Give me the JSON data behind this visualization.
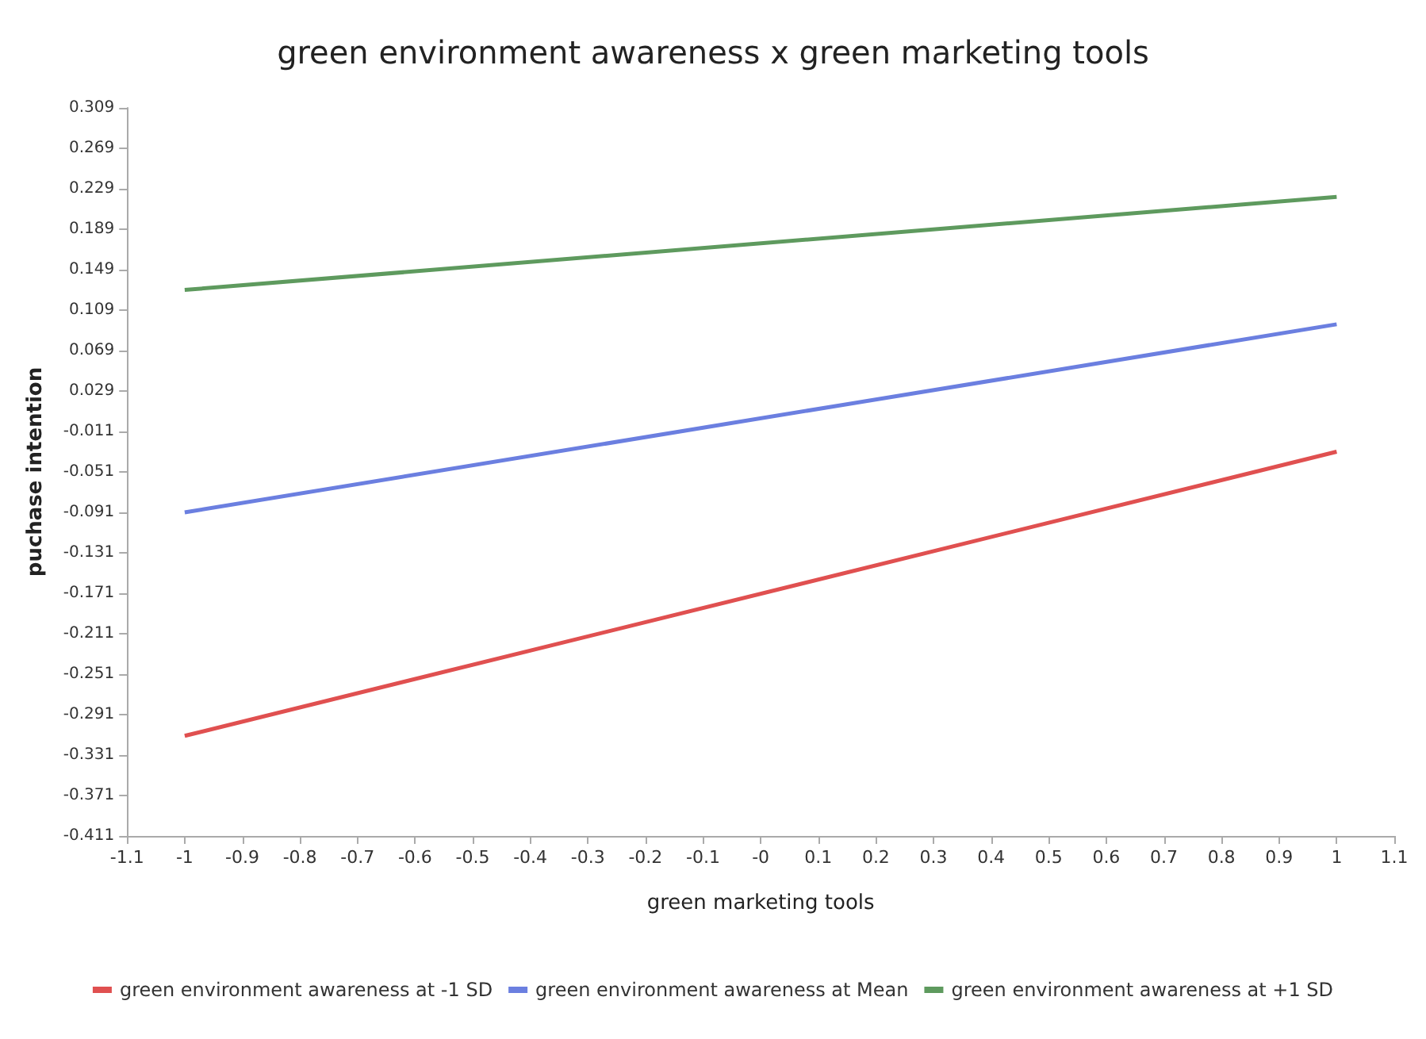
{
  "chart_data": {
    "type": "line",
    "title": "green environment awareness x green marketing tools",
    "xlabel": "green marketing tools",
    "ylabel": "puchase intention",
    "x": [
      -1,
      1
    ],
    "series": [
      {
        "name": "green environment awareness at -1 SD",
        "color": "#e05050",
        "values": [
          -0.312,
          -0.031
        ]
      },
      {
        "name": "green environment awareness at Mean",
        "color": "#6b7fe0",
        "values": [
          -0.091,
          0.095
        ]
      },
      {
        "name": "green environment awareness at +1 SD",
        "color": "#5e9a5e",
        "values": [
          0.129,
          0.221
        ]
      }
    ],
    "xlim": [
      -1.1,
      1.1
    ],
    "xticks": [
      -1.1,
      -1,
      -0.9,
      -0.8,
      -0.7,
      -0.6,
      -0.5,
      -0.4,
      -0.3,
      -0.2,
      -0.1,
      {
        "value": 0,
        "label": "-0"
      },
      0.1,
      0.2,
      0.3,
      0.4,
      0.5,
      0.6,
      0.7,
      0.8,
      0.9,
      1,
      1.1
    ],
    "ylim": [
      -0.411,
      0.309
    ],
    "yticks": [
      -0.411,
      -0.371,
      -0.331,
      -0.291,
      -0.251,
      -0.211,
      -0.171,
      -0.131,
      -0.091,
      -0.051,
      -0.011,
      0.029,
      0.069,
      0.109,
      0.149,
      0.189,
      0.229,
      0.269,
      0.309
    ],
    "grid": false,
    "legend": "bottom",
    "marker": "none",
    "line_style": "solid"
  }
}
